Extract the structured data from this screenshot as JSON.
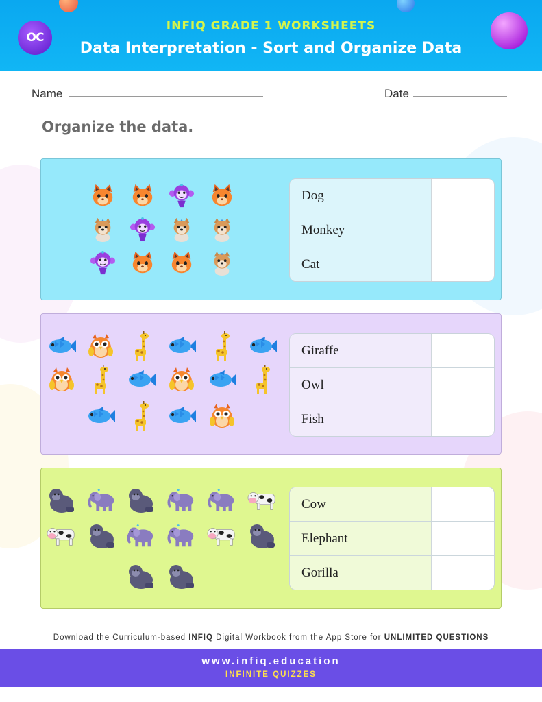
{
  "header": {
    "logo_text": "OC",
    "brand": "INFIQ GRADE 1 WORKSHEETS",
    "title": "Data Interpretation - Sort and Organize Data"
  },
  "fields": {
    "name_label": "Name",
    "date_label": "Date"
  },
  "instruction": "Organize the data.",
  "sections": [
    {
      "animals": [
        "cat",
        "cat",
        "monkey",
        "cat",
        "dog",
        "monkey",
        "dog",
        "dog",
        "monkey",
        "cat",
        "cat",
        "dog"
      ],
      "table": [
        "Dog",
        "Monkey",
        "Cat"
      ]
    },
    {
      "animals": [
        "fish",
        "owl",
        "giraffe",
        "fish",
        "giraffe",
        "fish",
        "owl",
        "giraffe",
        "fish",
        "owl",
        "fish",
        "giraffe",
        "fish",
        "giraffe",
        "fish",
        "owl"
      ],
      "table": [
        "Giraffe",
        "Owl",
        "Fish"
      ]
    },
    {
      "animals": [
        "gorilla",
        "elephant",
        "gorilla",
        "elephant",
        "elephant",
        "cow",
        "cow",
        "gorilla",
        "elephant",
        "elephant",
        "cow",
        "gorilla",
        "gorilla",
        "gorilla"
      ],
      "table": [
        "Cow",
        "Elephant",
        "Gorilla"
      ]
    }
  ],
  "footer": {
    "promo_pre": "Download the Curriculum-based ",
    "promo_brand": "INFIQ",
    "promo_mid": " Digital Workbook from the App Store for ",
    "promo_end": "UNLIMITED QUESTIONS",
    "site": "www.infiq.education",
    "tagline": "INFINITE QUIZZES"
  }
}
